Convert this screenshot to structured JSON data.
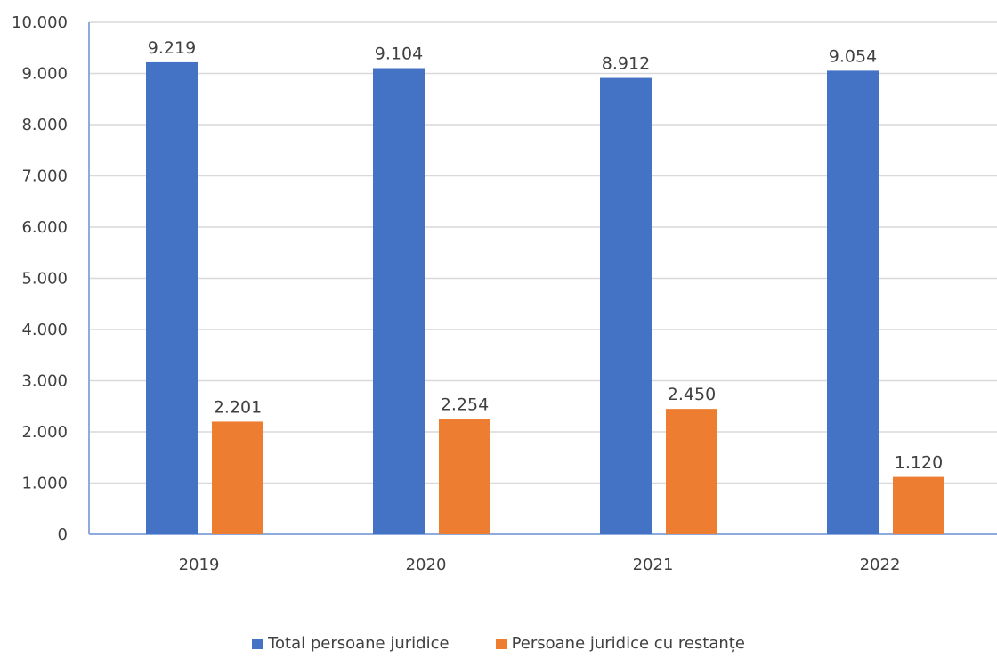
{
  "chart_data": {
    "type": "bar",
    "categories": [
      "2019",
      "2020",
      "2021",
      "2022"
    ],
    "series": [
      {
        "name": "Total persoane juridice",
        "values": [
          9219,
          9104,
          8912,
          9054
        ],
        "labels": [
          "9.219",
          "9.104",
          "8.912",
          "9.054"
        ],
        "color": "#4472c4"
      },
      {
        "name": "Persoane juridice cu restanțe",
        "values": [
          2201,
          2254,
          2450,
          1120
        ],
        "labels": [
          "2.201",
          "2.254",
          "2.450",
          "1.120"
        ],
        "color": "#ed7d31"
      }
    ],
    "ylim": [
      0,
      10000
    ],
    "yticks": [
      0,
      1000,
      2000,
      3000,
      4000,
      5000,
      6000,
      7000,
      8000,
      9000,
      10000
    ],
    "ytick_labels": [
      "0",
      "1.000",
      "2.000",
      "3.000",
      "4.000",
      "5.000",
      "6.000",
      "7.000",
      "8.000",
      "9.000",
      "10.000"
    ],
    "grid": true,
    "legend_position": "bottom",
    "gridline_color": "#d9d9d9",
    "axis_color": "#8faadc"
  }
}
